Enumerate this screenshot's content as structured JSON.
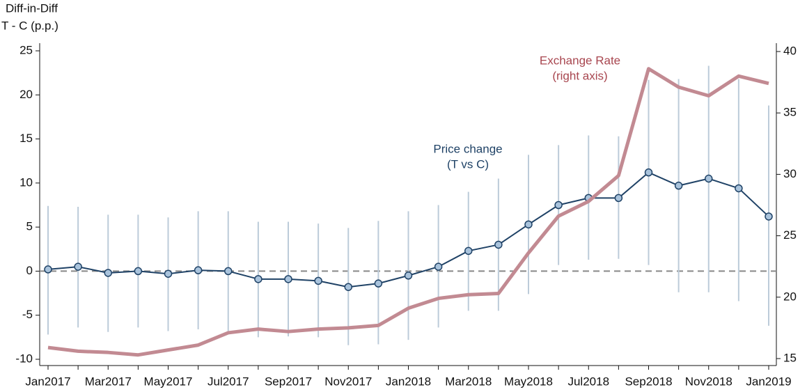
{
  "chart_data": {
    "type": "line",
    "ylabel": [
      "Diff-in-Diff",
      "T - C (p.p.)"
    ],
    "categories": [
      "Jan2017",
      null,
      "Mar2017",
      null,
      "May2017",
      null,
      "Jul2017",
      null,
      "Sep2017",
      null,
      "Nov2017",
      null,
      "Jan2018",
      null,
      "Mar2018",
      null,
      "May2018",
      null,
      "Jul2018",
      null,
      "Sep2018",
      null,
      "Nov2018",
      null,
      "Jan2019"
    ],
    "ylim": [
      -10,
      25
    ],
    "yticks": [
      -10,
      -5,
      0,
      5,
      10,
      15,
      20,
      25
    ],
    "y2lim": [
      15,
      40
    ],
    "y2ticks": [
      15,
      20,
      25,
      30,
      35,
      40
    ],
    "reference_y": 0,
    "series": [
      {
        "label": [
          "Price change",
          "(T vs C)"
        ],
        "color": "#1f4266",
        "marker_color": "#a9c3dc",
        "ci_color": "#bccbd9",
        "axis": "y",
        "values": [
          0.2,
          0.5,
          -0.2,
          0.0,
          -0.3,
          0.1,
          0.0,
          -0.9,
          -0.9,
          -1.1,
          -1.8,
          -1.4,
          -0.5,
          0.5,
          2.3,
          3.0,
          5.3,
          7.5,
          8.3,
          8.3,
          11.2,
          9.7,
          10.5,
          9.4,
          6.2
        ],
        "lower": [
          -7.2,
          -6.4,
          -6.9,
          -6.4,
          -6.8,
          -6.6,
          -6.8,
          -7.5,
          -7.4,
          -7.5,
          -8.4,
          -8.3,
          -7.8,
          -6.4,
          -4.5,
          -4.5,
          -2.6,
          0.7,
          1.3,
          1.4,
          0.7,
          -2.4,
          -2.4,
          -3.4,
          -6.2
        ],
        "upper": [
          7.4,
          7.3,
          6.4,
          6.4,
          6.1,
          6.8,
          6.8,
          5.6,
          5.6,
          5.4,
          4.9,
          5.7,
          6.8,
          7.5,
          9.0,
          10.5,
          13.2,
          14.3,
          15.4,
          15.3,
          21.7,
          21.8,
          23.3,
          21.8,
          18.8
        ]
      },
      {
        "label": [
          "Exchange Rate",
          "(right axis)"
        ],
        "color": "#c28a92",
        "label_color": "#a8464f",
        "axis": "y2",
        "values": [
          15.9,
          15.6,
          15.5,
          15.3,
          15.7,
          16.1,
          17.1,
          17.4,
          17.2,
          17.4,
          17.5,
          17.7,
          19.1,
          19.9,
          20.2,
          20.3,
          23.6,
          26.6,
          27.8,
          29.9,
          38.6,
          37.1,
          36.4,
          38.0,
          37.4
        ]
      }
    ]
  }
}
